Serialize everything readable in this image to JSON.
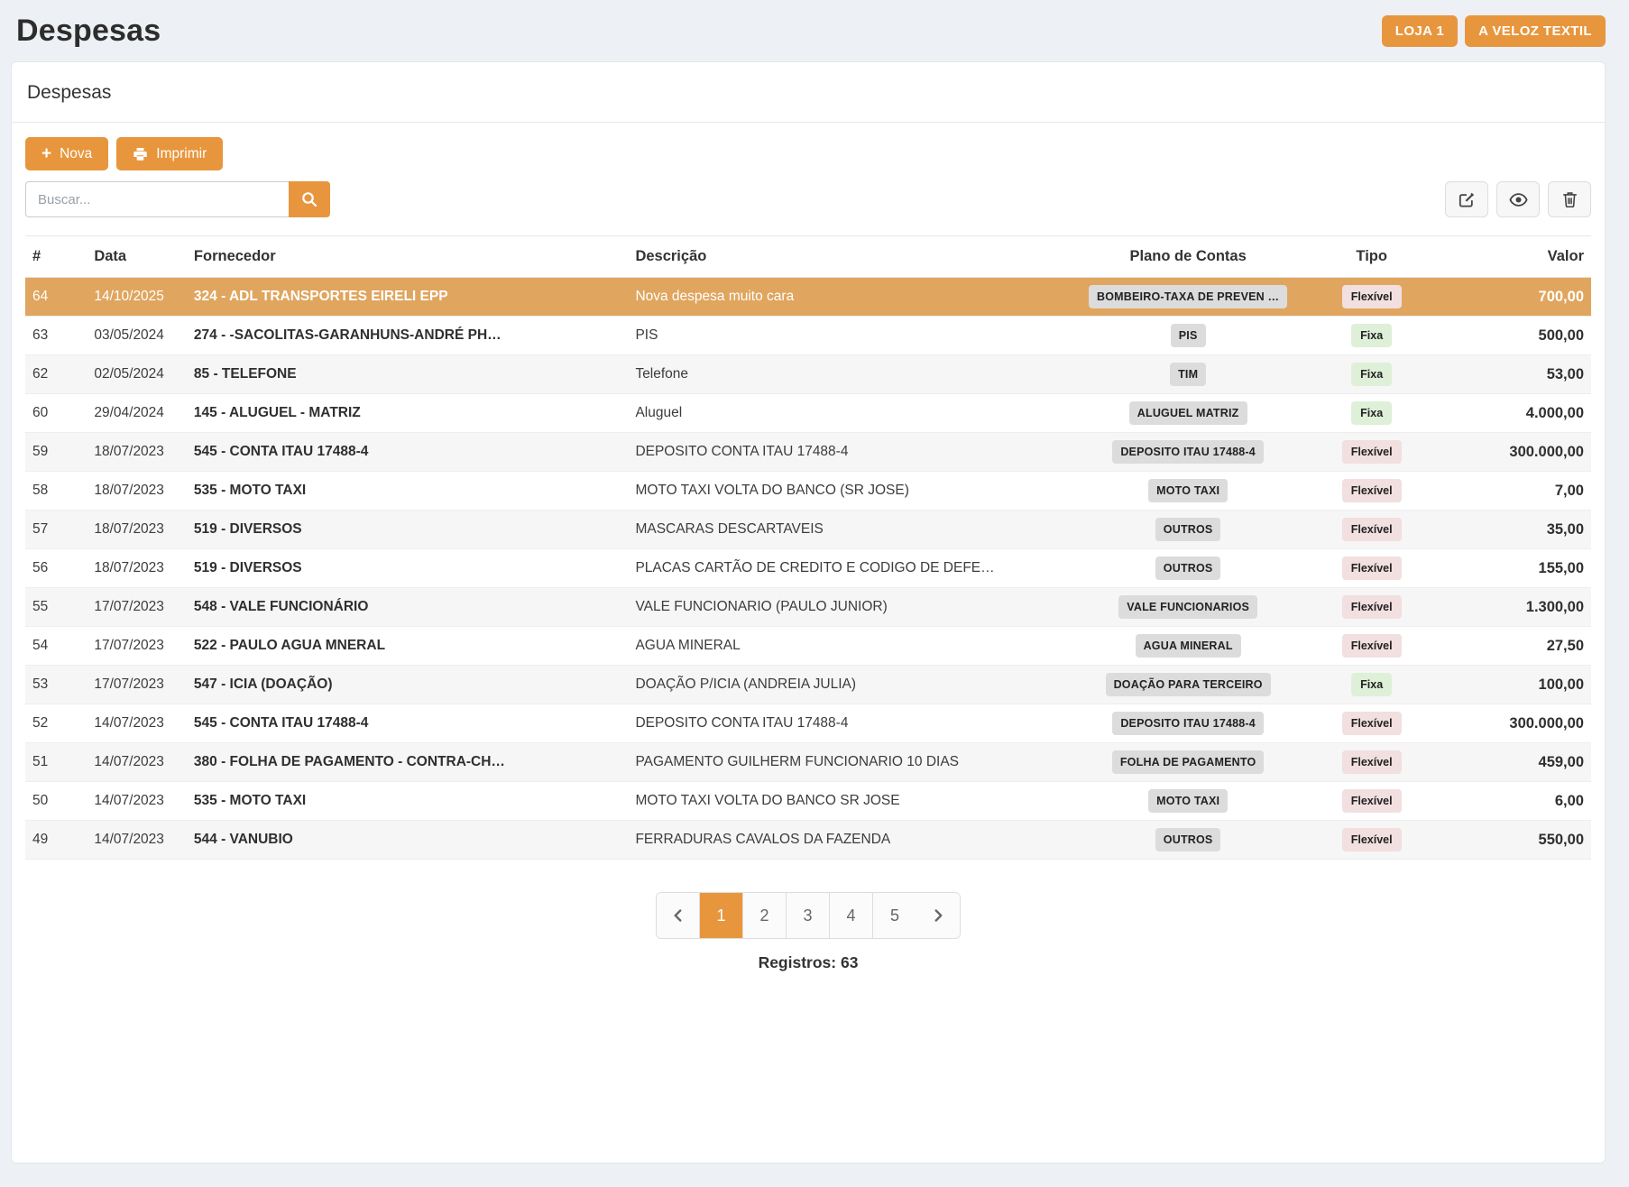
{
  "page": {
    "title": "Despesas"
  },
  "header": {
    "store_badge": "LOJA 1",
    "company_badge": "A VELOZ TEXTIL"
  },
  "card": {
    "title": "Despesas",
    "toolbar": {
      "new_label": "Nova",
      "print_label": "Imprimir"
    },
    "search": {
      "placeholder": "Buscar...",
      "value": ""
    }
  },
  "table": {
    "columns": [
      "#",
      "Data",
      "Fornecedor",
      "Descrição",
      "Plano de Contas",
      "Tipo",
      "Valor"
    ],
    "rows": [
      {
        "id": "64",
        "date": "14/10/2025",
        "supplier": "324 - ADL TRANSPORTES EIRELI EPP",
        "description": "Nova despesa muito cara",
        "plan": "BOMBEIRO-TAXA DE PREVEN …",
        "type": "Flexível",
        "value": "700,00",
        "selected": true
      },
      {
        "id": "63",
        "date": "03/05/2024",
        "supplier": "274 - -SACOLITAS-GARANHUNS-ANDRÉ PH…",
        "description": "PIS",
        "plan": "PIS",
        "type": "Fixa",
        "value": "500,00",
        "selected": false
      },
      {
        "id": "62",
        "date": "02/05/2024",
        "supplier": "85 - TELEFONE",
        "description": "Telefone",
        "plan": "TIM",
        "type": "Fixa",
        "value": "53,00",
        "selected": false
      },
      {
        "id": "60",
        "date": "29/04/2024",
        "supplier": "145 - ALUGUEL - MATRIZ",
        "description": "Aluguel",
        "plan": "ALUGUEL MATRIZ",
        "type": "Fixa",
        "value": "4.000,00",
        "selected": false
      },
      {
        "id": "59",
        "date": "18/07/2023",
        "supplier": "545 - CONTA ITAU 17488-4",
        "description": "DEPOSITO CONTA ITAU 17488-4",
        "plan": "DEPOSITO ITAU 17488-4",
        "type": "Flexível",
        "value": "300.000,00",
        "selected": false
      },
      {
        "id": "58",
        "date": "18/07/2023",
        "supplier": "535 - MOTO TAXI",
        "description": "MOTO TAXI VOLTA DO BANCO (SR JOSE)",
        "plan": "MOTO TAXI",
        "type": "Flexível",
        "value": "7,00",
        "selected": false
      },
      {
        "id": "57",
        "date": "18/07/2023",
        "supplier": "519 - DIVERSOS",
        "description": "MASCARAS DESCARTAVEIS",
        "plan": "OUTROS",
        "type": "Flexível",
        "value": "35,00",
        "selected": false
      },
      {
        "id": "56",
        "date": "18/07/2023",
        "supplier": "519 - DIVERSOS",
        "description": "PLACAS CARTÃO DE CREDITO E CODIGO DE DEFE…",
        "plan": "OUTROS",
        "type": "Flexível",
        "value": "155,00",
        "selected": false
      },
      {
        "id": "55",
        "date": "17/07/2023",
        "supplier": "548 - VALE FUNCIONÁRIO",
        "description": "VALE FUNCIONARIO (PAULO JUNIOR)",
        "plan": "VALE FUNCIONARIOS",
        "type": "Flexível",
        "value": "1.300,00",
        "selected": false
      },
      {
        "id": "54",
        "date": "17/07/2023",
        "supplier": "522 - PAULO AGUA MNERAL",
        "description": "AGUA MINERAL",
        "plan": "AGUA MINERAL",
        "type": "Flexível",
        "value": "27,50",
        "selected": false
      },
      {
        "id": "53",
        "date": "17/07/2023",
        "supplier": "547 - ICIA (DOAÇÃO)",
        "description": "DOAÇÃO P/ICIA (ANDREIA JULIA)",
        "plan": "DOAÇÃO PARA TERCEIRO",
        "type": "Fixa",
        "value": "100,00",
        "selected": false
      },
      {
        "id": "52",
        "date": "14/07/2023",
        "supplier": "545 - CONTA ITAU 17488-4",
        "description": "DEPOSITO CONTA ITAU 17488-4",
        "plan": "DEPOSITO ITAU 17488-4",
        "type": "Flexível",
        "value": "300.000,00",
        "selected": false
      },
      {
        "id": "51",
        "date": "14/07/2023",
        "supplier": "380 - FOLHA DE PAGAMENTO - CONTRA-CH…",
        "description": "PAGAMENTO GUILHERM FUNCIONARIO 10 DIAS",
        "plan": "FOLHA DE PAGAMENTO",
        "type": "Flexível",
        "value": "459,00",
        "selected": false
      },
      {
        "id": "50",
        "date": "14/07/2023",
        "supplier": "535 - MOTO TAXI",
        "description": "MOTO TAXI VOLTA DO BANCO SR JOSE",
        "plan": "MOTO TAXI",
        "type": "Flexível",
        "value": "6,00",
        "selected": false
      },
      {
        "id": "49",
        "date": "14/07/2023",
        "supplier": "544 - VANUBIO",
        "description": "FERRADURAS CAVALOS DA FAZENDA",
        "plan": "OUTROS",
        "type": "Flexível",
        "value": "550,00",
        "selected": false
      }
    ]
  },
  "pagination": {
    "pages": [
      "1",
      "2",
      "3",
      "4",
      "5"
    ],
    "active": "1"
  },
  "footer": {
    "records_label": "Registros: 63"
  },
  "colors": {
    "accent": "#e8963d",
    "selected_row": "#e0a55e",
    "page_bg": "#edf0f4",
    "plan_badge_bg": "#dcdcdc",
    "type_fixa_bg": "#def0d8",
    "type_flexivel_bg": "#f2dfdf"
  }
}
